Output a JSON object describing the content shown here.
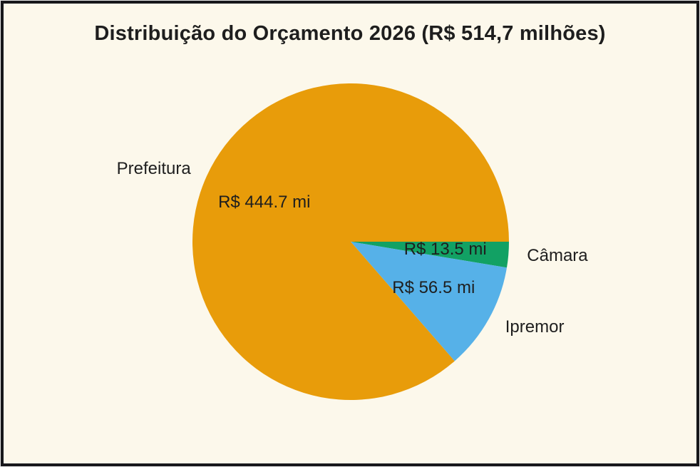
{
  "frame": {
    "background_color": "#FCF8EB",
    "border_color": "#17171b",
    "text_color": "#1E1E1E"
  },
  "title": "Distribuição do Orçamento 2026 (R$ 514,7 milhões)",
  "chart_data": {
    "type": "pie",
    "title": "Distribuição do Orçamento 2026 (R$ 514,7 milhões)",
    "total": 514.7,
    "unit": "R$ milhões",
    "start_angle_deg": 0,
    "direction": "clockwise",
    "legend": "none",
    "category_labels_position": "outside",
    "value_labels_position": "inside",
    "slices": [
      {
        "name": "Câmara",
        "value": 13.5,
        "value_label": "R$ 13.5 mi",
        "color": "#12A164"
      },
      {
        "name": "Ipremor",
        "value": 56.5,
        "value_label": "R$ 56.5 mi",
        "color": "#56B1E8"
      },
      {
        "name": "Prefeitura",
        "value": 444.7,
        "value_label": "R$ 444.7 mi",
        "color": "#E89C0A"
      }
    ]
  }
}
